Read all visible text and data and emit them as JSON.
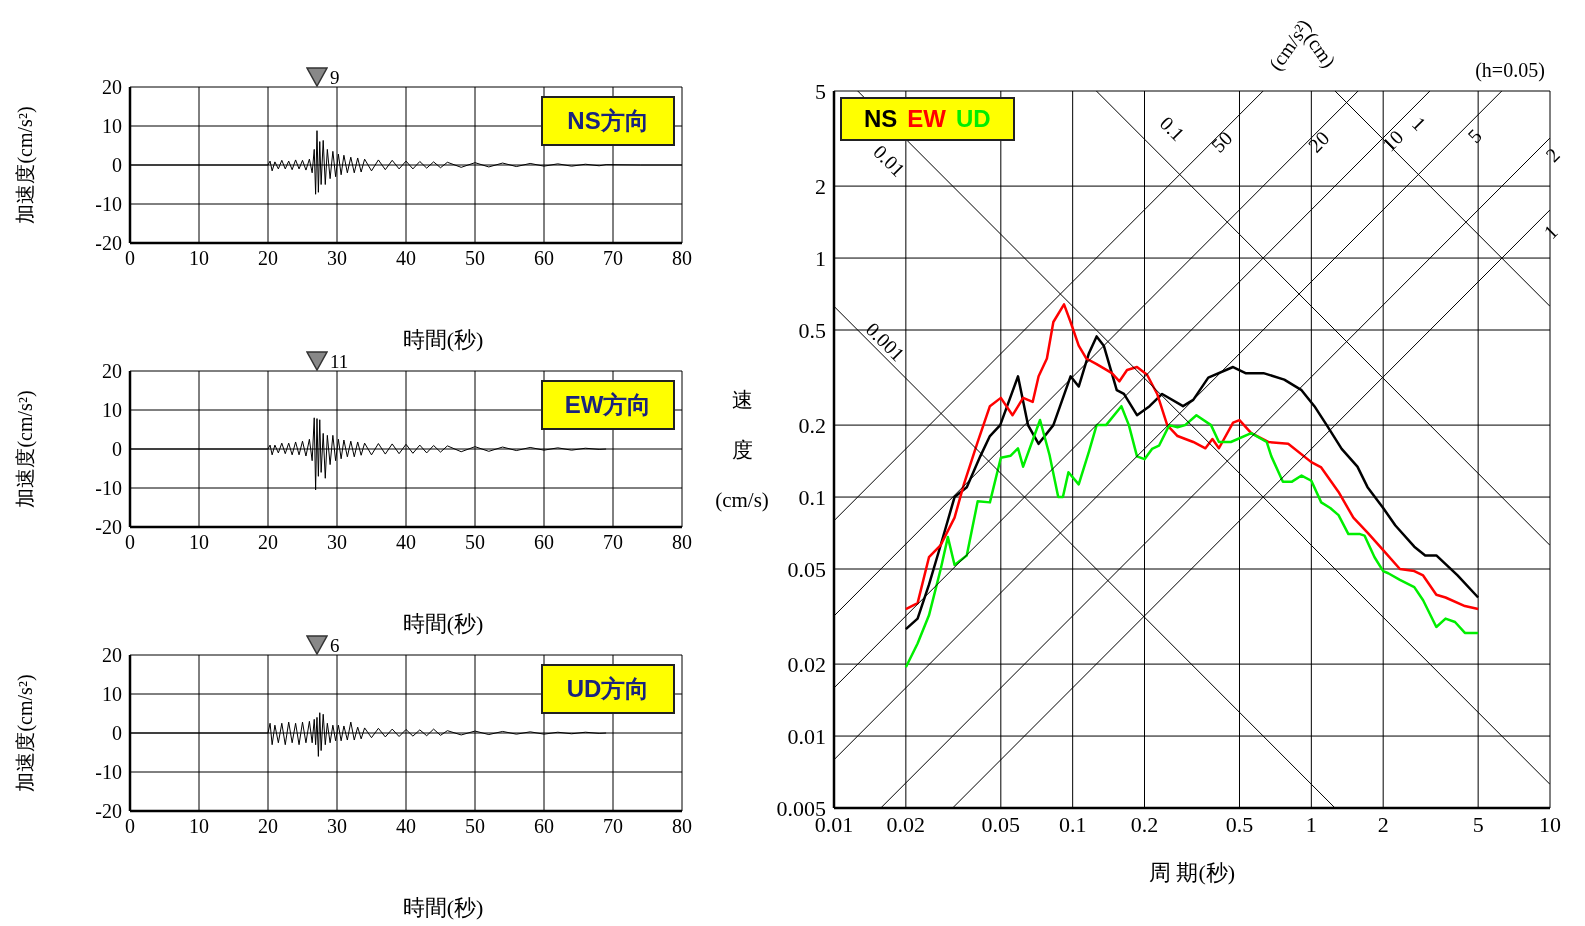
{
  "chart_data": [
    {
      "type": "line",
      "xlabel": "時間(秒)",
      "ylabel": "加速度(cm/s²)",
      "xlim": [
        0,
        80
      ],
      "xticks": [
        0,
        10,
        20,
        30,
        40,
        50,
        60,
        70,
        80
      ],
      "ylim": [
        -20,
        20
      ],
      "yticks": [
        -20,
        -10,
        0,
        10,
        20
      ],
      "grid": true,
      "color": "#000000",
      "x": [
        0,
        20,
        20.3,
        20.6,
        21,
        21.5,
        22,
        22.5,
        23,
        23.5,
        24,
        24.5,
        25,
        25.5,
        26,
        26.4,
        26.7,
        26.9,
        27.1,
        27.3,
        27.5,
        27.7,
        28,
        28.3,
        28.6,
        29,
        29.4,
        29.8,
        30.2,
        30.6,
        31,
        31.5,
        32,
        32.5,
        33,
        33.5,
        34,
        35,
        36,
        37,
        38,
        39,
        40,
        41,
        42,
        43,
        44,
        45,
        46,
        48,
        50,
        52,
        54,
        56,
        58,
        60,
        62,
        64,
        66,
        68,
        69,
        74,
        80
      ],
      "values": [
        0,
        0,
        1,
        -1.5,
        0.8,
        -1,
        1.2,
        -1,
        1,
        -1.2,
        1.3,
        -1,
        1.2,
        -1.3,
        1.5,
        -2,
        4,
        -7.5,
        8.8,
        -7,
        6,
        -5,
        6.3,
        -5,
        4,
        -3.5,
        3.5,
        -3,
        2.8,
        -2.5,
        2.5,
        -2,
        2,
        -2,
        1.8,
        -1.8,
        1.5,
        -1.5,
        1.3,
        -1.2,
        1.2,
        -1,
        1,
        -1,
        0.9,
        -0.8,
        0.8,
        -0.7,
        0.7,
        -0.6,
        0.6,
        -0.5,
        0.5,
        -0.4,
        0.4,
        -0.3,
        0.3,
        -0.3,
        0.2,
        -0.2,
        0.1,
        0,
        0
      ],
      "annotations": [
        "NS方向",
        "9"
      ]
    },
    {
      "type": "line",
      "xlabel": "時間(秒)",
      "ylabel": "加速度(cm/s²)",
      "xlim": [
        0,
        80
      ],
      "xticks": [
        0,
        10,
        20,
        30,
        40,
        50,
        60,
        70,
        80
      ],
      "ylim": [
        -20,
        20
      ],
      "yticks": [
        -20,
        -10,
        0,
        10,
        20
      ],
      "grid": true,
      "color": "#000000",
      "x": [
        0,
        20,
        20.3,
        20.6,
        21,
        21.5,
        22,
        22.5,
        23,
        23.5,
        24,
        24.5,
        25,
        25.5,
        26,
        26.4,
        26.7,
        26.9,
        27.1,
        27.3,
        27.5,
        27.7,
        28,
        28.3,
        28.6,
        29,
        29.4,
        29.8,
        30.2,
        30.6,
        31,
        31.5,
        32,
        32.5,
        33,
        33.5,
        34,
        35,
        36,
        37,
        38,
        39,
        40,
        41,
        42,
        43,
        44,
        45,
        46,
        48,
        50,
        52,
        54,
        56,
        58,
        60,
        62,
        64,
        66,
        68,
        69
      ],
      "values": [
        0,
        0,
        1,
        -1.5,
        1,
        -1,
        1.5,
        -1.2,
        1.5,
        -1.5,
        1.8,
        -1.5,
        2,
        -1.8,
        2.5,
        -3,
        8,
        -10.5,
        7.8,
        -7,
        7.5,
        -6,
        4,
        -7.5,
        3.5,
        -4,
        3.5,
        -3,
        2.5,
        -2.5,
        2.3,
        -2,
        2,
        -2,
        1.8,
        -1.6,
        1.5,
        -1.5,
        1.4,
        -1.3,
        1.3,
        -1.2,
        1.2,
        -1.1,
        1,
        -1,
        0.9,
        -0.8,
        0.8,
        -0.7,
        0.6,
        -0.6,
        0.5,
        -0.4,
        0.4,
        -0.3,
        0.3,
        -0.3,
        0.2,
        -0.1,
        0
      ],
      "annotations": [
        "EW方向",
        "11"
      ]
    },
    {
      "type": "line",
      "xlabel": "時間(秒)",
      "ylabel": "加速度(cm/s²)",
      "xlim": [
        0,
        80
      ],
      "xticks": [
        0,
        10,
        20,
        30,
        40,
        50,
        60,
        70,
        80
      ],
      "ylim": [
        -20,
        20
      ],
      "yticks": [
        -20,
        -10,
        0,
        10,
        20
      ],
      "grid": true,
      "color": "#000000",
      "x": [
        0,
        20,
        20.3,
        20.6,
        21,
        21.5,
        22,
        22.5,
        23,
        23.5,
        24,
        24.5,
        25,
        25.5,
        26,
        26.4,
        26.7,
        26.9,
        27.1,
        27.3,
        27.5,
        27.7,
        28,
        28.3,
        28.6,
        29,
        29.4,
        29.8,
        30.2,
        30.6,
        31,
        31.5,
        32,
        32.5,
        33,
        33.5,
        34,
        35,
        36,
        37,
        38,
        39,
        40,
        41,
        42,
        43,
        44,
        45,
        46,
        48,
        50,
        52,
        54,
        56,
        58,
        60,
        62,
        64,
        66,
        68,
        69
      ],
      "values": [
        0,
        0,
        2.5,
        -3,
        2,
        -2.5,
        2.5,
        -3,
        2.8,
        -2.5,
        2.5,
        -3,
        2.8,
        -2.5,
        3,
        -2.5,
        3.5,
        -3,
        4,
        -6,
        5.2,
        -4.5,
        4.8,
        -3,
        2.5,
        -2.5,
        2,
        -2,
        2,
        -2,
        1.8,
        -1.8,
        2.8,
        -1.8,
        1.5,
        -1.5,
        1.3,
        -1.2,
        1.2,
        -1,
        1,
        -0.9,
        0.9,
        -0.8,
        0.8,
        -0.7,
        1,
        -0.6,
        0.6,
        -0.5,
        0.5,
        -0.4,
        0.4,
        -0.3,
        0.3,
        -0.3,
        0.2,
        -0.2,
        0.2,
        -0.1,
        0
      ],
      "annotations": [
        "UD方向",
        "6"
      ]
    },
    {
      "type": "line",
      "log": "xy",
      "xlabel": "周 期(秒)",
      "ylabel": "速度(cm/s)",
      "xlim": [
        0.01,
        10
      ],
      "xticks": [
        0.01,
        0.02,
        0.05,
        0.1,
        0.2,
        0.5,
        1,
        2,
        5,
        10
      ],
      "ylim": [
        0.005,
        5
      ],
      "yticks": [
        0.005,
        0.01,
        0.02,
        0.05,
        0.1,
        0.2,
        0.5,
        1,
        2,
        5
      ],
      "grid": true,
      "legend": "top left",
      "series": [
        {
          "name": "NS",
          "color": "#000000",
          "x": [
            0.02,
            0.0224,
            0.025,
            0.028,
            0.032,
            0.036,
            0.041,
            0.045,
            0.0497,
            0.059,
            0.065,
            0.072,
            0.083,
            0.098,
            0.106,
            0.117,
            0.126,
            0.135,
            0.153,
            0.164,
            0.186,
            0.21,
            0.237,
            0.29,
            0.32,
            0.37,
            0.47,
            0.53,
            0.63,
            0.77,
            0.91,
            1.03,
            1.16,
            1.34,
            1.56,
            1.72,
            2.0,
            2.25,
            2.7,
            3.0,
            3.34,
            4.1,
            5.0
          ],
          "values": [
            0.028,
            0.031,
            0.043,
            0.063,
            0.1,
            0.11,
            0.148,
            0.18,
            0.2,
            0.32,
            0.2,
            0.167,
            0.2,
            0.32,
            0.29,
            0.4,
            0.47,
            0.43,
            0.28,
            0.27,
            0.22,
            0.24,
            0.27,
            0.24,
            0.255,
            0.316,
            0.35,
            0.33,
            0.33,
            0.31,
            0.28,
            0.24,
            0.2,
            0.159,
            0.134,
            0.11,
            0.09,
            0.076,
            0.062,
            0.057,
            0.057,
            0.047,
            0.038
          ]
        },
        {
          "name": "EW",
          "color": "#ff0000",
          "x": [
            0.02,
            0.0224,
            0.025,
            0.028,
            0.032,
            0.035,
            0.04,
            0.045,
            0.05,
            0.056,
            0.062,
            0.068,
            0.072,
            0.078,
            0.083,
            0.092,
            0.098,
            0.106,
            0.114,
            0.126,
            0.146,
            0.157,
            0.169,
            0.186,
            0.205,
            0.226,
            0.249,
            0.275,
            0.32,
            0.36,
            0.385,
            0.41,
            0.47,
            0.5,
            0.56,
            0.66,
            0.8,
            1.0,
            1.1,
            1.3,
            1.5,
            1.72,
            2.0,
            2.35,
            2.7,
            2.94,
            3.34,
            3.65,
            4.4,
            5.0
          ],
          "values": [
            0.034,
            0.036,
            0.056,
            0.063,
            0.082,
            0.113,
            0.17,
            0.24,
            0.26,
            0.22,
            0.26,
            0.25,
            0.32,
            0.38,
            0.54,
            0.64,
            0.54,
            0.43,
            0.38,
            0.36,
            0.33,
            0.305,
            0.34,
            0.35,
            0.325,
            0.27,
            0.2,
            0.18,
            0.17,
            0.16,
            0.175,
            0.16,
            0.205,
            0.21,
            0.185,
            0.17,
            0.167,
            0.14,
            0.133,
            0.105,
            0.082,
            0.071,
            0.06,
            0.05,
            0.049,
            0.047,
            0.039,
            0.038,
            0.035,
            0.034
          ]
        },
        {
          "name": "UD",
          "color": "#00ee00",
          "x": [
            0.02,
            0.0224,
            0.025,
            0.028,
            0.03,
            0.032,
            0.036,
            0.04,
            0.045,
            0.05,
            0.055,
            0.059,
            0.062,
            0.069,
            0.073,
            0.08,
            0.087,
            0.091,
            0.096,
            0.106,
            0.117,
            0.126,
            0.138,
            0.16,
            0.172,
            0.186,
            0.2,
            0.215,
            0.23,
            0.254,
            0.275,
            0.296,
            0.33,
            0.38,
            0.41,
            0.46,
            0.56,
            0.65,
            0.68,
            0.76,
            0.83,
            0.91,
            1.0,
            1.1,
            1.2,
            1.3,
            1.43,
            1.6,
            1.67,
            1.84,
            2.0,
            2.1,
            2.35,
            2.7,
            2.94,
            3.34,
            3.65,
            4.0,
            4.4,
            5.0
          ],
          "values": [
            0.0194,
            0.0244,
            0.032,
            0.05,
            0.068,
            0.052,
            0.057,
            0.096,
            0.095,
            0.146,
            0.149,
            0.16,
            0.134,
            0.18,
            0.21,
            0.15,
            0.1,
            0.1,
            0.127,
            0.113,
            0.155,
            0.2,
            0.2,
            0.24,
            0.2,
            0.148,
            0.144,
            0.159,
            0.164,
            0.2,
            0.196,
            0.2,
            0.22,
            0.2,
            0.17,
            0.17,
            0.185,
            0.17,
            0.148,
            0.116,
            0.116,
            0.123,
            0.117,
            0.095,
            0.09,
            0.084,
            0.07,
            0.07,
            0.069,
            0.056,
            0.049,
            0.048,
            0.045,
            0.042,
            0.037,
            0.0286,
            0.031,
            0.03,
            0.027,
            0.027
          ]
        },
        {
          "color": "#000000",
          "x": [
            0.01,
            1.257
          ],
          "values": [
            0.628,
            0.005
          ]
        },
        {
          "color": "#000000",
          "x": [
            0.01257,
            10
          ],
          "values": [
            5,
            0.00628
          ]
        },
        {
          "color": "#000000",
          "x": [
            0.1257,
            10
          ],
          "values": [
            5,
            0.0628
          ]
        },
        {
          "color": "#000000",
          "x": [
            1.257,
            10
          ],
          "values": [
            5,
            0.628
          ]
        },
        {
          "color": "#000000",
          "x": [
            0.0314,
            10
          ],
          "values": [
            0.005,
            1.59
          ]
        },
        {
          "color": "#000000",
          "x": [
            0.0157,
            10
          ],
          "values": [
            0.005,
            3.18
          ]
        },
        {
          "color": "#000000",
          "x": [
            0.01,
            6.28
          ],
          "values": [
            0.00796,
            5
          ]
        },
        {
          "color": "#000000",
          "x": [
            0.01,
            3.14
          ],
          "values": [
            0.0159,
            5
          ]
        },
        {
          "color": "#000000",
          "x": [
            0.01,
            1.57
          ],
          "values": [
            0.0318,
            5
          ]
        },
        {
          "color": "#000000",
          "x": [
            0.01,
            0.628
          ],
          "values": [
            0.0796,
            5
          ]
        }
      ],
      "annotations": [
        "(cm/s²)",
        "(cm)",
        "(h=0.05)",
        "0.001",
        "0.01",
        "0.1",
        "1",
        "50",
        "20",
        "10",
        "5",
        "2",
        "1"
      ]
    }
  ]
}
